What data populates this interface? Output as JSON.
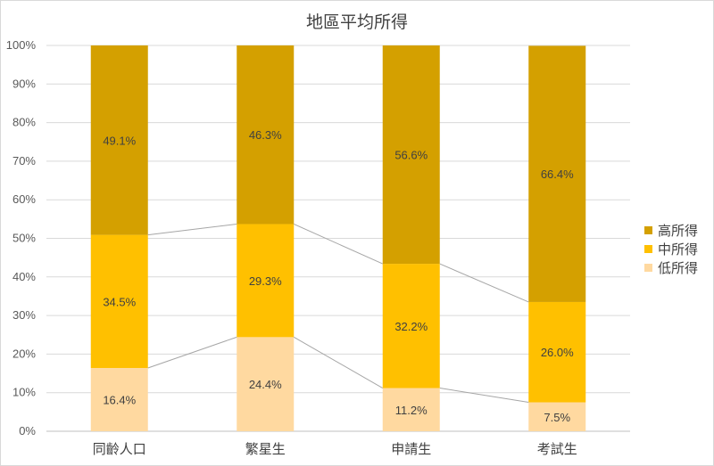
{
  "chart_data": {
    "type": "bar",
    "stacked": "percent",
    "title": "地區平均所得",
    "categories": [
      "同齡人口",
      "繁星生",
      "申請生",
      "考試生"
    ],
    "series": [
      {
        "name": "低所得",
        "values": [
          16.4,
          24.4,
          11.2,
          7.5
        ],
        "labels": [
          "16.4%",
          "24.4%",
          "11.2%",
          "7.5%"
        ],
        "color": "#FFD9A0"
      },
      {
        "name": "中所得",
        "values": [
          34.5,
          29.3,
          32.2,
          26.0
        ],
        "labels": [
          "34.5%",
          "29.3%",
          "32.2%",
          "26.0%"
        ],
        "color": "#FFC000"
      },
      {
        "name": "高所得",
        "values": [
          49.1,
          46.3,
          56.6,
          66.4
        ],
        "labels": [
          "49.1%",
          "46.3%",
          "56.6%",
          "66.4%"
        ],
        "color": "#D4A000"
      }
    ],
    "ylim": [
      0,
      100
    ],
    "yticks": [
      "0%",
      "10%",
      "20%",
      "30%",
      "40%",
      "50%",
      "60%",
      "70%",
      "80%",
      "90%",
      "100%"
    ],
    "legend_position": "right",
    "legend_order": [
      "高所得",
      "中所得",
      "低所得"
    ],
    "series_lines": true,
    "grid": true
  }
}
